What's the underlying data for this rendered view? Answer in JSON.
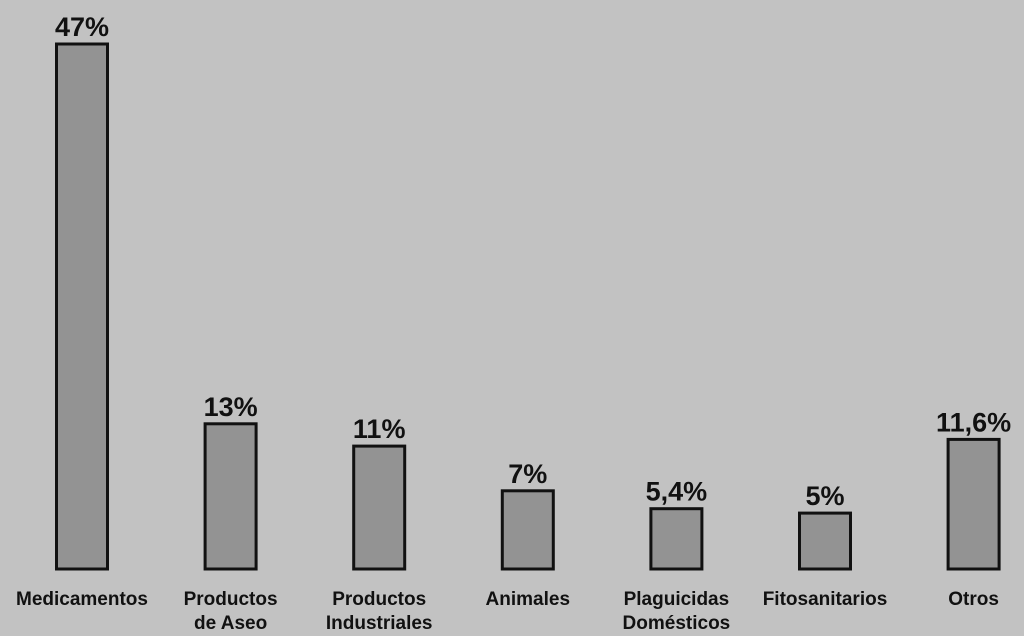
{
  "chart_data": {
    "type": "bar",
    "categories": [
      [
        "Medicamentos"
      ],
      [
        "Productos",
        "de Aseo"
      ],
      [
        "Productos",
        "Industriales"
      ],
      [
        "Animales"
      ],
      [
        "Plaguicidas",
        "Domésticos"
      ],
      [
        "Fitosanitarios"
      ],
      [
        "Otros"
      ]
    ],
    "values": [
      47,
      13,
      11,
      7,
      5.4,
      5,
      11.6
    ],
    "data_labels": [
      "47%",
      "13%",
      "11%",
      "7%",
      "5,4%",
      "5%",
      "11,6%"
    ],
    "ylim": [
      0,
      47
    ],
    "grid": false,
    "colors": {
      "background": "#c2c2c2",
      "bar_fill": "#939393",
      "bar_stroke": "#111111",
      "text": "#111111"
    }
  }
}
